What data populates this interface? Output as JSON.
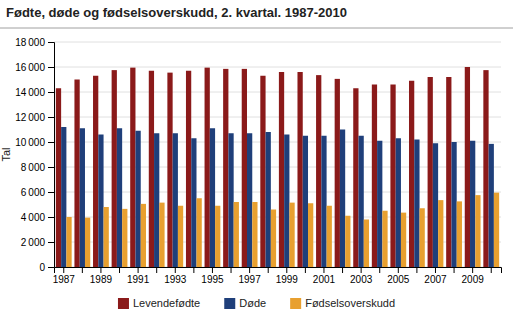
{
  "chart_data": {
    "type": "bar",
    "title": "Fødte, døde og fødselsoverskudd, 2. kvartal. 1987-2010",
    "ylabel": "Tal",
    "categories": [
      "1987",
      null,
      "1989",
      null,
      "1991",
      null,
      "1993",
      null,
      "1995",
      null,
      "1997",
      null,
      "1999",
      null,
      "2001",
      null,
      "2003",
      null,
      "2005",
      null,
      "2007",
      null,
      "2009",
      null
    ],
    "series": [
      {
        "name": "Levendefødte",
        "color": "#8B1A1A",
        "values": [
          14300,
          15000,
          15300,
          15750,
          15950,
          15700,
          15550,
          15700,
          15950,
          15850,
          15850,
          15300,
          15600,
          15600,
          15350,
          15050,
          14300,
          14600,
          14600,
          14900,
          15200,
          15200,
          16000,
          15750
        ]
      },
      {
        "name": "Døde",
        "color": "#1F3F7A",
        "values": [
          11200,
          11100,
          10600,
          11100,
          10900,
          10700,
          10700,
          10300,
          11100,
          10700,
          10700,
          10800,
          10600,
          10500,
          10500,
          11000,
          10500,
          10100,
          10300,
          10200,
          9900,
          10000,
          10100,
          9850
        ]
      },
      {
        "name": "Fødselsoverskudd",
        "color": "#E8A030",
        "values": [
          4000,
          3950,
          4800,
          4650,
          5050,
          5150,
          4900,
          5500,
          4900,
          5200,
          5200,
          4600,
          5150,
          5100,
          4900,
          4100,
          3800,
          4500,
          4350,
          4700,
          5350,
          5250,
          5750,
          5950
        ]
      }
    ],
    "ylim": [
      0,
      18000
    ],
    "yticks": [
      0,
      {
        "value": 2000,
        "label": "2 000"
      },
      {
        "value": 4000,
        "label": "4 000"
      },
      {
        "value": 6000,
        "label": "6 000"
      },
      {
        "value": 8000,
        "label": "8 000"
      },
      {
        "value": 10000,
        "label": "10 000"
      },
      {
        "value": 12000,
        "label": "12 000"
      },
      {
        "value": 14000,
        "label": "14 000"
      },
      {
        "value": 16000,
        "label": "16 000"
      },
      {
        "value": 18000,
        "label": "18 000"
      }
    ],
    "grid": true,
    "legend": "bottom"
  }
}
